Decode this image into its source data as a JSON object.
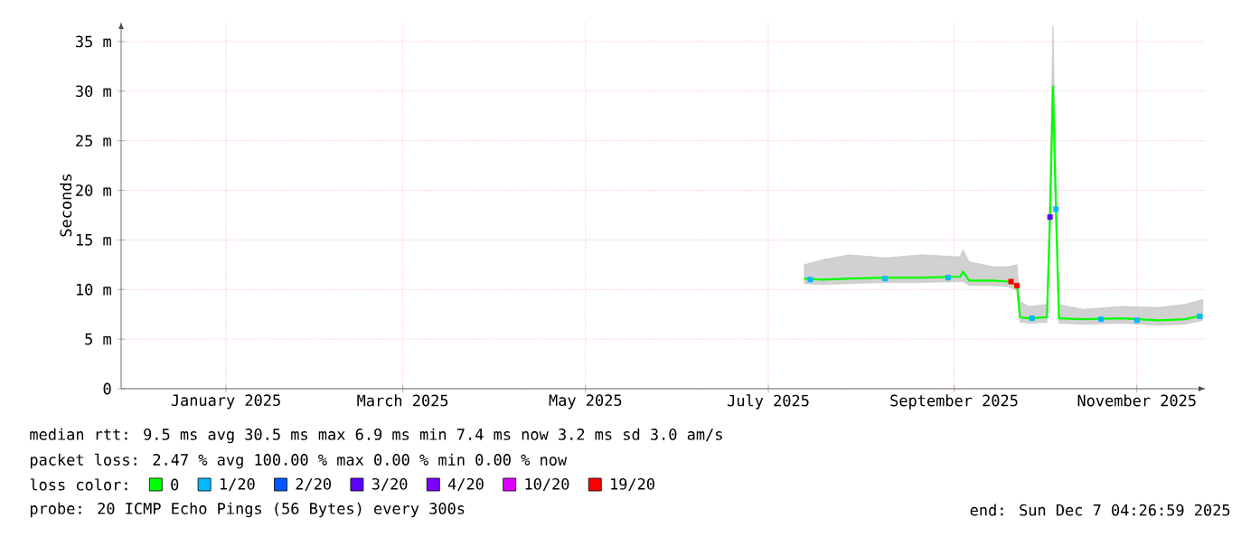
{
  "chart_data": {
    "type": "line",
    "ylabel": "Seconds",
    "legend_title": "loss color:",
    "legend": "bottom",
    "grid": true,
    "xlim": [
      "2024-11-27",
      "2025-11-24"
    ],
    "ylim": [
      0,
      37
    ],
    "xticks": [
      {
        "value": "2025-01-01",
        "label": "January 2025"
      },
      {
        "value": "2025-03-01",
        "label": "March 2025"
      },
      {
        "value": "2025-05-01",
        "label": "May 2025"
      },
      {
        "value": "2025-07-01",
        "label": "July 2025"
      },
      {
        "value": "2025-09-01",
        "label": "September 2025"
      },
      {
        "value": "2025-11-01",
        "label": "November 2025"
      }
    ],
    "yticks": [
      0,
      {
        "value": 5,
        "label": "5 m"
      },
      {
        "value": 10,
        "label": "10 m"
      },
      {
        "value": 15,
        "label": "15 m"
      },
      {
        "value": 20,
        "label": "20 m"
      },
      {
        "value": 25,
        "label": "25 m"
      },
      {
        "value": 30,
        "label": "30 m"
      },
      {
        "value": 35,
        "label": "35 m"
      }
    ],
    "series": [
      {
        "name": "0",
        "color": "#00ff00",
        "marker": "none",
        "x": [
          "2025-07-13",
          "2025-07-19",
          "2025-07-28",
          "2025-08-09",
          "2025-08-21",
          "2025-09-03",
          "2025-09-04",
          "2025-09-06",
          "2025-09-14",
          "2025-09-19",
          "2025-09-22",
          "2025-09-23",
          "2025-09-26",
          "2025-10-02",
          "2025-10-03",
          "2025-10-04",
          "2025-10-05",
          "2025-10-06",
          "2025-10-14",
          "2025-10-27",
          "2025-11-08",
          "2025-11-17",
          "2025-11-23"
        ],
        "values": [
          11.1,
          11.0,
          11.1,
          11.2,
          11.2,
          11.3,
          11.8,
          10.9,
          10.9,
          10.8,
          10.4,
          7.2,
          7.1,
          7.2,
          17.3,
          30.5,
          18.1,
          7.1,
          7.0,
          7.1,
          6.9,
          7.0,
          7.4
        ],
        "lower": [
          10.6,
          10.5,
          10.6,
          10.7,
          10.7,
          10.8,
          10.8,
          10.4,
          10.4,
          10.3,
          9.9,
          6.7,
          6.6,
          6.7,
          16.0,
          28.0,
          16.0,
          6.6,
          6.5,
          6.6,
          6.4,
          6.5,
          6.9
        ],
        "upper": [
          12.5,
          13.0,
          13.5,
          13.2,
          13.5,
          13.3,
          14.0,
          12.8,
          12.3,
          12.3,
          12.5,
          8.8,
          8.3,
          8.5,
          20.0,
          36.6,
          21.0,
          8.5,
          8.0,
          8.3,
          8.2,
          8.5,
          9.0
        ]
      },
      {
        "name": "1/20",
        "color": "#00b8ff",
        "type": "scatter",
        "marker": "square",
        "x": [
          "2025-07-15",
          "2025-08-09",
          "2025-08-30",
          "2025-09-27",
          "2025-10-05",
          "2025-10-20",
          "2025-11-01",
          "2025-11-22"
        ],
        "values": [
          11.0,
          11.1,
          11.2,
          7.1,
          18.1,
          7.0,
          6.9,
          7.3
        ]
      },
      {
        "name": "2/20",
        "color": "#0059ff",
        "type": "scatter",
        "marker": "square"
      },
      {
        "name": "3/20",
        "color": "#5e00ff",
        "type": "scatter",
        "marker": "square",
        "x": [
          "2025-10-03"
        ],
        "values": [
          17.3
        ]
      },
      {
        "name": "4/20",
        "color": "#7e00ff",
        "type": "scatter",
        "marker": "square"
      },
      {
        "name": "10/20",
        "color": "#dd00ff",
        "type": "scatter",
        "marker": "square"
      },
      {
        "name": "19/20",
        "color": "#ff0000",
        "type": "scatter",
        "marker": "square",
        "x": [
          "2025-09-20",
          "2025-09-22"
        ],
        "values": [
          10.8,
          10.4
        ]
      }
    ],
    "annotations": [
      "median rtt:  9.5 ms avg  30.5 ms max  6.9 ms min  7.4 ms now  3.2 ms sd  3.0   am/s",
      "packet loss: 2.47 % avg  100.00 % max  0.00 % min  0.00 % now",
      "probe:       20 ICMP Echo Pings (56 Bytes) every 300s",
      "end: Sun Dec  7 04:26:59 2025"
    ]
  }
}
